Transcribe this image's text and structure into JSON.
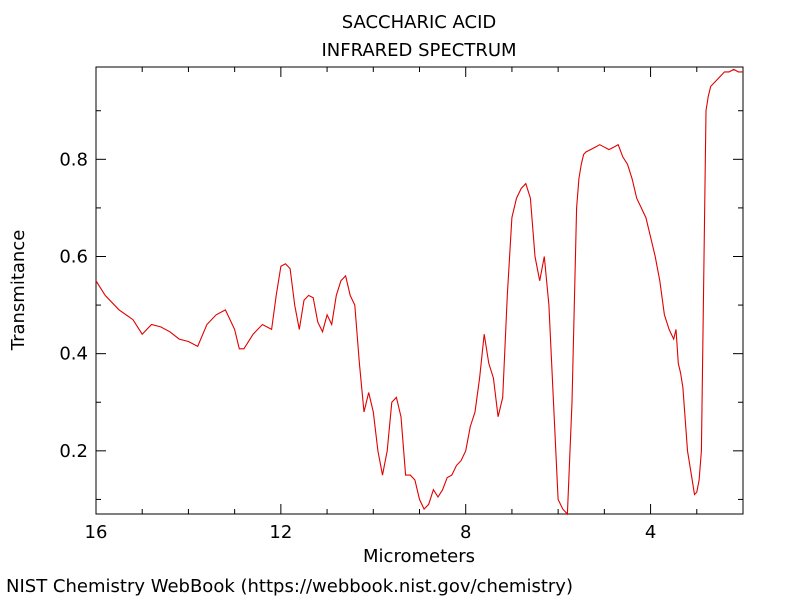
{
  "footer": {
    "credit": "NIST Chemistry WebBook (https://webbook.nist.gov/chemistry)"
  },
  "chart_data": {
    "type": "line",
    "title": "SACCHARIC ACID",
    "subtitle": "INFRARED SPECTRUM",
    "xlabel": "Micrometers",
    "ylabel": "Transmitance",
    "xlim": [
      16,
      2
    ],
    "ylim": [
      0.07,
      0.99
    ],
    "x_reversed": true,
    "grid": false,
    "x_ticks": [
      16,
      12,
      8,
      4
    ],
    "x_tick_labels": [
      "16",
      "12",
      "8",
      "4"
    ],
    "y_ticks": [
      0.2,
      0.4,
      0.6,
      0.8
    ],
    "y_tick_labels": [
      "0.2",
      "0.4",
      "0.6",
      "0.8"
    ],
    "line_color": "#e00000",
    "series": [
      {
        "x": [
          16.0,
          15.8,
          15.5,
          15.2,
          15.0,
          14.8,
          14.6,
          14.4,
          14.2,
          14.0,
          13.8,
          13.6,
          13.4,
          13.2,
          13.0,
          12.9,
          12.8,
          12.6,
          12.4,
          12.2,
          12.1,
          12.0,
          11.9,
          11.8,
          11.7,
          11.6,
          11.5,
          11.4,
          11.3,
          11.2,
          11.1,
          11.0,
          10.9,
          10.8,
          10.7,
          10.6,
          10.5,
          10.4,
          10.3,
          10.2,
          10.1,
          10.0,
          9.9,
          9.8,
          9.7,
          9.6,
          9.5,
          9.4,
          9.3,
          9.2,
          9.1,
          9.0,
          8.9,
          8.8,
          8.7,
          8.6,
          8.5,
          8.4,
          8.3,
          8.2,
          8.1,
          8.0,
          7.9,
          7.8,
          7.7,
          7.6,
          7.5,
          7.4,
          7.3,
          7.2,
          7.1,
          7.0,
          6.9,
          6.8,
          6.7,
          6.6,
          6.5,
          6.4,
          6.3,
          6.2,
          6.1,
          6.0,
          5.9,
          5.8,
          5.7,
          5.65,
          5.6,
          5.55,
          5.5,
          5.45,
          5.4,
          5.3,
          5.2,
          5.1,
          5.0,
          4.9,
          4.8,
          4.7,
          4.6,
          4.5,
          4.4,
          4.3,
          4.2,
          4.1,
          4.0,
          3.9,
          3.8,
          3.7,
          3.6,
          3.5,
          3.45,
          3.4,
          3.35,
          3.3,
          3.2,
          3.1,
          3.05,
          3.0,
          2.95,
          2.9,
          2.85,
          2.8,
          2.75,
          2.7,
          2.6,
          2.5,
          2.4,
          2.3,
          2.2,
          2.1,
          2.0
        ],
        "y": [
          0.55,
          0.52,
          0.49,
          0.47,
          0.44,
          0.46,
          0.455,
          0.445,
          0.43,
          0.425,
          0.415,
          0.46,
          0.48,
          0.49,
          0.45,
          0.41,
          0.41,
          0.44,
          0.46,
          0.45,
          0.52,
          0.58,
          0.585,
          0.575,
          0.5,
          0.45,
          0.51,
          0.52,
          0.515,
          0.465,
          0.445,
          0.48,
          0.46,
          0.52,
          0.55,
          0.56,
          0.52,
          0.5,
          0.38,
          0.28,
          0.32,
          0.28,
          0.2,
          0.15,
          0.2,
          0.3,
          0.31,
          0.27,
          0.15,
          0.15,
          0.14,
          0.1,
          0.08,
          0.09,
          0.12,
          0.105,
          0.12,
          0.145,
          0.15,
          0.17,
          0.18,
          0.2,
          0.25,
          0.28,
          0.35,
          0.44,
          0.38,
          0.35,
          0.27,
          0.31,
          0.52,
          0.68,
          0.72,
          0.74,
          0.75,
          0.72,
          0.6,
          0.55,
          0.6,
          0.5,
          0.3,
          0.1,
          0.08,
          0.07,
          0.3,
          0.5,
          0.7,
          0.76,
          0.79,
          0.81,
          0.815,
          0.82,
          0.825,
          0.83,
          0.825,
          0.82,
          0.825,
          0.83,
          0.805,
          0.79,
          0.76,
          0.72,
          0.7,
          0.68,
          0.64,
          0.6,
          0.55,
          0.48,
          0.45,
          0.43,
          0.45,
          0.38,
          0.36,
          0.33,
          0.2,
          0.14,
          0.11,
          0.115,
          0.14,
          0.2,
          0.55,
          0.9,
          0.93,
          0.95,
          0.96,
          0.97,
          0.98,
          0.98,
          0.985,
          0.98,
          0.98
        ]
      }
    ]
  }
}
